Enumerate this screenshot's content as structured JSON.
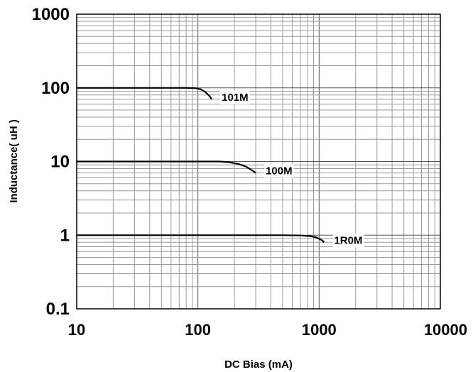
{
  "chart_data": {
    "type": "line",
    "title": "",
    "xlabel": "DC Bias (mA)",
    "ylabel": "Inductance( uH )",
    "x_scale": "log",
    "y_scale": "log",
    "xlim": [
      10,
      10000
    ],
    "ylim": [
      0.1,
      1000
    ],
    "x_ticks": [
      "10",
      "100",
      "1000",
      "10000"
    ],
    "y_ticks": [
      "0.1",
      "1",
      "10",
      "100",
      "1000"
    ],
    "grid": true,
    "series": [
      {
        "name": "101M",
        "x": [
          10,
          50,
          80,
          95,
          105,
          115,
          125,
          130
        ],
        "y": [
          100,
          100,
          100,
          99,
          96,
          88,
          77,
          70
        ]
      },
      {
        "name": "100M",
        "x": [
          10,
          100,
          150,
          180,
          220,
          250,
          280,
          300
        ],
        "y": [
          10,
          10,
          10,
          9.8,
          9.2,
          8.5,
          7.6,
          7
        ]
      },
      {
        "name": "1R0M",
        "x": [
          10,
          200,
          500,
          700,
          850,
          950,
          1050,
          1100
        ],
        "y": [
          1,
          1,
          1,
          0.99,
          0.97,
          0.93,
          0.86,
          0.8
        ]
      }
    ]
  }
}
